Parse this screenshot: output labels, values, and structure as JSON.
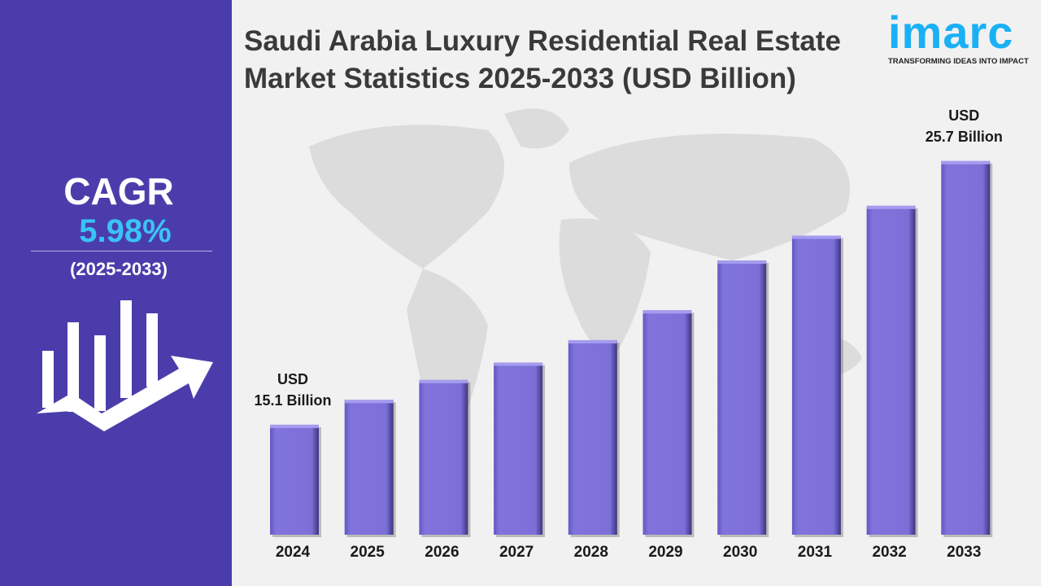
{
  "title": "Saudi Arabia Luxury Residential Real Estate Market Statistics 2025-2033 (USD Billion)",
  "logo": {
    "word": "imarc",
    "tagline": "TRANSFORMING IDEAS INTO IMPACT"
  },
  "cagr": {
    "label": "CAGR",
    "value": "5.98%",
    "period": "(2025-2033)"
  },
  "colors": {
    "panel": "#4a3dab",
    "bar": "#7b6fd9",
    "cagr_value": "#3bc3f5",
    "logo": "#1ab0f5"
  },
  "icons": [
    "growth-chart-arrow-icon",
    "world-map-background"
  ],
  "chart_data": {
    "type": "bar",
    "title": "Saudi Arabia Luxury Residential Real Estate Market Statistics 2025-2033 (USD Billion)",
    "categories": [
      "2024",
      "2025",
      "2026",
      "2027",
      "2028",
      "2029",
      "2030",
      "2031",
      "2032",
      "2033"
    ],
    "values": [
      15.1,
      16.1,
      16.9,
      17.6,
      18.5,
      19.7,
      21.7,
      22.7,
      23.9,
      25.7
    ],
    "annotations": [
      {
        "category": "2024",
        "line1": "USD",
        "line2": "15.1 Billion"
      },
      {
        "category": "2033",
        "line1": "USD",
        "line2": "25.7 Billion"
      }
    ],
    "xlabel": "",
    "ylabel": "",
    "grid": false,
    "legend": "none"
  }
}
